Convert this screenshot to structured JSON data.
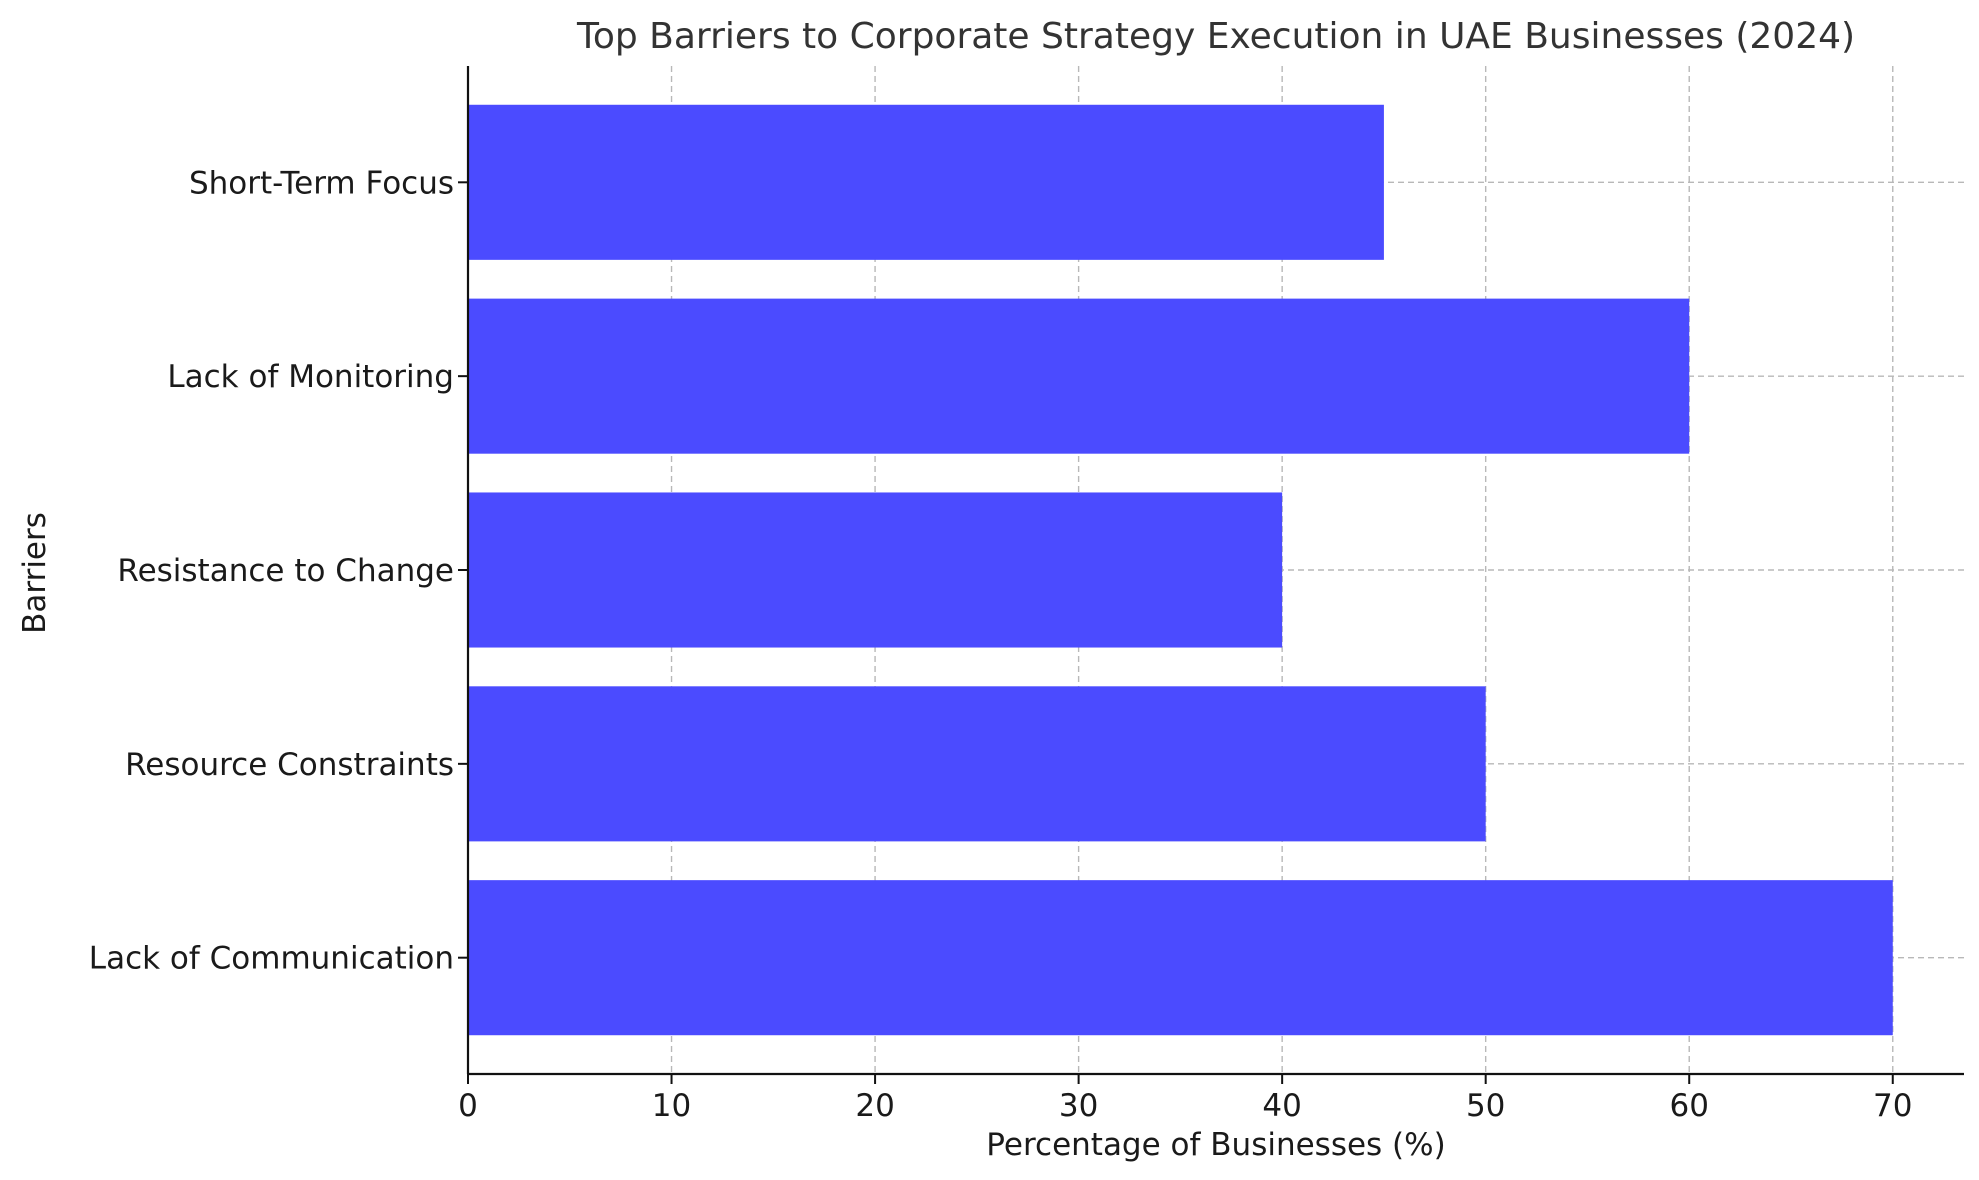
{
  "chart_data": {
    "type": "bar",
    "orientation": "horizontal",
    "title": "Top Barriers to Corporate Strategy Execution in UAE Businesses (2024)",
    "xlabel": "Percentage of Businesses (%)",
    "ylabel": "Barriers",
    "categories": [
      "Lack of Communication",
      "Resource Constraints",
      "Resistance to Change",
      "Lack of Monitoring",
      "Short-Term Focus"
    ],
    "values": [
      70,
      50,
      40,
      60,
      45
    ],
    "xlim": [
      0,
      73.5
    ],
    "xticks": [
      0,
      10,
      20,
      30,
      40,
      50,
      60,
      70
    ],
    "bar_color": "#4b4bff",
    "grid": true,
    "grid_style": "dashed"
  }
}
